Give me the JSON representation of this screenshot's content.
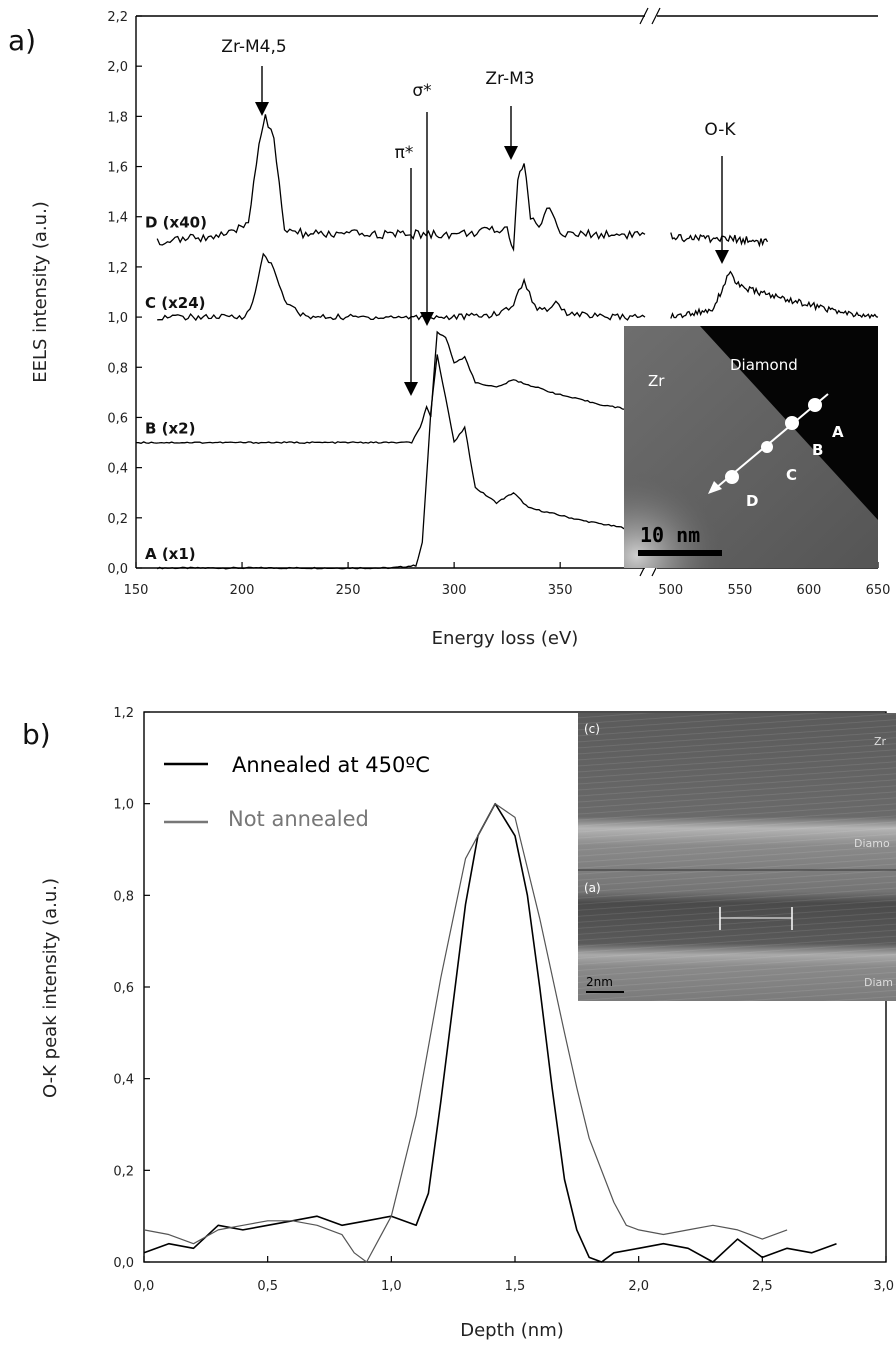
{
  "chart_data": [
    {
      "panel": "a)",
      "type": "line",
      "xlabel": "Energy loss (eV)",
      "ylabel": "EELS intensity (a.u.)",
      "ylim": [
        0,
        2.2
      ],
      "x_segments": [
        [
          150,
          390
        ],
        [
          490,
          650
        ]
      ],
      "x_ticks_seg1": [
        "150",
        "200",
        "250",
        "300",
        "350"
      ],
      "x_ticks_seg2": [
        "500",
        "550",
        "600",
        "650"
      ],
      "y_ticks": [
        "0,0",
        "0,2",
        "0,4",
        "0,6",
        "0,8",
        "1,0",
        "1,2",
        "1,4",
        "1,6",
        "1,8",
        "2,0",
        "2,2"
      ],
      "series": [
        {
          "name": "A (x1)",
          "x": [
            160,
            270,
            282,
            285,
            289,
            292,
            296,
            300,
            305,
            310,
            320,
            328,
            335,
            345,
            360,
            380,
            390
          ],
          "y": [
            0.0,
            0.0,
            0.01,
            0.1,
            0.62,
            0.85,
            0.68,
            0.5,
            0.56,
            0.32,
            0.26,
            0.3,
            0.24,
            0.22,
            0.19,
            0.16,
            0.15
          ]
        },
        {
          "name": "B (x2)",
          "x": [
            150,
            280,
            284,
            287,
            289,
            292,
            296,
            300,
            305,
            310,
            320,
            328,
            335,
            350,
            370,
            390
          ],
          "y": [
            0.5,
            0.5,
            0.56,
            0.64,
            0.6,
            0.94,
            0.92,
            0.82,
            0.84,
            0.74,
            0.72,
            0.75,
            0.73,
            0.69,
            0.65,
            0.62
          ]
        },
        {
          "name": "C (x24)",
          "x": [
            160,
            200,
            205,
            210,
            215,
            220,
            230,
            250,
            300,
            320,
            328,
            333,
            338,
            345,
            348,
            352,
            370,
            390,
            500,
            530,
            538,
            542,
            550,
            570,
            600,
            630,
            650
          ],
          "y": [
            1.0,
            1.0,
            1.05,
            1.25,
            1.2,
            1.06,
            1.0,
            1.0,
            1.0,
            1.01,
            1.05,
            1.15,
            1.04,
            1.03,
            1.07,
            1.02,
            1.0,
            1.0,
            1.0,
            1.03,
            1.12,
            1.18,
            1.12,
            1.09,
            1.05,
            1.01,
            1.0
          ]
        },
        {
          "name": "D (x40)",
          "x": [
            160,
            195,
            203,
            208,
            211,
            215,
            220,
            230,
            300,
            325,
            328,
            330,
            333,
            336,
            340,
            345,
            350,
            390,
            500,
            550,
            570
          ],
          "y": [
            1.3,
            1.33,
            1.38,
            1.7,
            1.8,
            1.7,
            1.35,
            1.33,
            1.33,
            1.35,
            1.28,
            1.55,
            1.62,
            1.4,
            1.35,
            1.45,
            1.33,
            1.33,
            1.32,
            1.31,
            1.3
          ]
        }
      ],
      "annotations": [
        "Zr-M4,5",
        "σ*",
        "π*",
        "Zr-M3",
        "O-K"
      ],
      "inset": {
        "labels": [
          "Zr",
          "Diamond",
          "A",
          "B",
          "C",
          "D"
        ],
        "scale_bar": "10 nm"
      }
    },
    {
      "panel": "b)",
      "type": "line",
      "xlabel": "Depth (nm)",
      "ylabel": "O-K peak intensity (a.u.)",
      "xlim": [
        0,
        3.0
      ],
      "ylim": [
        0,
        1.2
      ],
      "x_ticks": [
        "0,0",
        "0,5",
        "1,0",
        "1,5",
        "2,0",
        "2,5",
        "3,0"
      ],
      "y_ticks": [
        "0,0",
        "0,2",
        "0,4",
        "0,6",
        "0,8",
        "1,0",
        "1,2"
      ],
      "series": [
        {
          "name": "Annealed at 450ºC",
          "color": "#000000",
          "x": [
            0.0,
            0.1,
            0.2,
            0.3,
            0.4,
            0.5,
            0.6,
            0.7,
            0.8,
            0.9,
            1.0,
            1.1,
            1.15,
            1.2,
            1.3,
            1.35,
            1.42,
            1.5,
            1.55,
            1.6,
            1.65,
            1.7,
            1.75,
            1.8,
            1.85,
            1.9,
            2.0,
            2.1,
            2.2,
            2.3,
            2.4,
            2.5,
            2.6,
            2.7,
            2.8
          ],
          "y": [
            0.02,
            0.04,
            0.03,
            0.08,
            0.07,
            0.08,
            0.09,
            0.1,
            0.08,
            0.09,
            0.1,
            0.08,
            0.15,
            0.35,
            0.78,
            0.93,
            1.0,
            0.93,
            0.8,
            0.6,
            0.38,
            0.18,
            0.07,
            0.01,
            0.0,
            0.02,
            0.03,
            0.04,
            0.03,
            0.0,
            0.05,
            0.01,
            0.03,
            0.02,
            0.04
          ]
        },
        {
          "name": "Not annealed",
          "color": "#555555",
          "x": [
            0.0,
            0.1,
            0.2,
            0.3,
            0.4,
            0.5,
            0.6,
            0.7,
            0.8,
            0.85,
            0.9,
            1.0,
            1.1,
            1.2,
            1.3,
            1.42,
            1.5,
            1.6,
            1.7,
            1.75,
            1.8,
            1.9,
            1.95,
            2.0,
            2.1,
            2.2,
            2.3,
            2.4,
            2.5,
            2.6
          ],
          "y": [
            0.07,
            0.06,
            0.04,
            0.07,
            0.08,
            0.09,
            0.09,
            0.08,
            0.06,
            0.02,
            0.0,
            0.1,
            0.32,
            0.62,
            0.88,
            1.0,
            0.97,
            0.75,
            0.5,
            0.38,
            0.27,
            0.13,
            0.08,
            0.07,
            0.06,
            0.07,
            0.08,
            0.07,
            0.05,
            0.07
          ]
        }
      ],
      "inset": {
        "labels": [
          "(c)",
          "Zr",
          "Diamo",
          "(a)",
          "Diam",
          "2nm"
        ]
      }
    }
  ]
}
